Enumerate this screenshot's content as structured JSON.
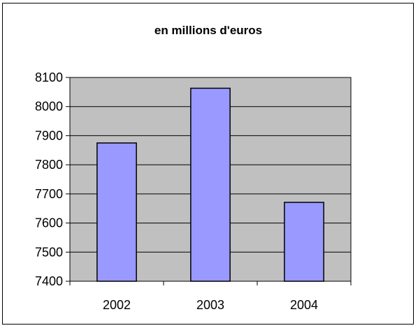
{
  "chart_data": {
    "type": "bar",
    "title": "en millions d'euros",
    "xlabel": "",
    "ylabel": "",
    "categories": [
      "2002",
      "2003",
      "2004"
    ],
    "values": [
      7875,
      8063,
      7671
    ],
    "ylim": [
      7400,
      8100
    ],
    "yticks": [
      "7400",
      "7500",
      "7600",
      "7700",
      "7800",
      "7900",
      "8000",
      "8100"
    ],
    "grid": true,
    "legend": "none"
  },
  "colors": {
    "bar_fill": "#9999ff",
    "plot_background": "#c0c0c0",
    "border": "#000000"
  }
}
